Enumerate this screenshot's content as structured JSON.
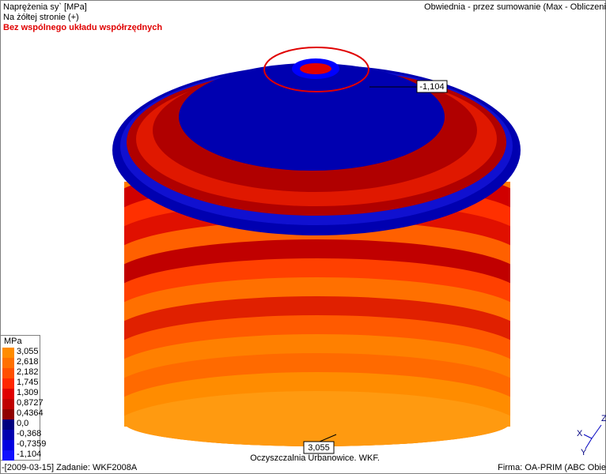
{
  "header": {
    "title": "Naprężenia sy` [MPa]",
    "subtitle": "Na żółtej stronie (+)",
    "warning": "Bez wspólnego układu współrzędnych",
    "right": "Obwiednia - przez sumowanie (Max - Obliczeni"
  },
  "legend": {
    "unit": "MPa",
    "labels": [
      "3,055",
      "2,618",
      "2,182",
      "1,745",
      "1,309",
      "0,8727",
      "0,4364",
      "0,0",
      "-0,368",
      "-0,7359",
      "-1,104"
    ]
  },
  "annotations": {
    "min": "-1,104",
    "max": "3,055"
  },
  "footer": {
    "left": "-[2009-03-15] Zadanie: WKF2008A",
    "center": "Oczyszczalnia Urbanowice. WKF.",
    "right": "Firma: OA-PRIM (ABC Obie"
  },
  "axes": {
    "z": "Z",
    "x": "X",
    "y": "Y"
  }
}
